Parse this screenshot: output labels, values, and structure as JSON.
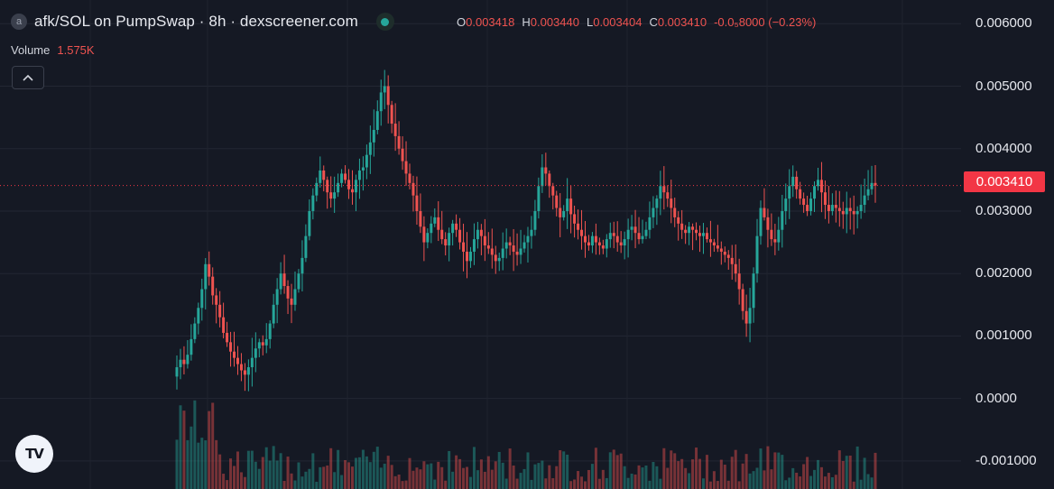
{
  "header": {
    "symbol_icon": "a",
    "title": "afk/SOL on PumpSwap · 8h · dexscreener.com",
    "ohlc": {
      "o_label": "O",
      "o": "0.003418",
      "h_label": "H",
      "h": "0.003440",
      "l_label": "L",
      "l": "0.003404",
      "c_label": "C",
      "c": "0.003410",
      "change": "-0.0₅8000 (−0.23%)"
    }
  },
  "volume": {
    "label": "Volume",
    "value": "1.575K"
  },
  "colors": {
    "up": "#26a69a",
    "down": "#ef5350",
    "background": "#151924",
    "price_line": "#f23645"
  },
  "icons": {
    "collapse": "chevron-up-icon",
    "logo": "tradingview-logo-icon"
  },
  "logo_text": "TV",
  "chart_data": {
    "type": "candlestick",
    "title": "afk/SOL on PumpSwap · 8h · dexscreener.com",
    "y_tick_labels": [
      "0.006000",
      "0.005000",
      "0.004000",
      "0.003000",
      "0.002000",
      "0.001000",
      "0.0000",
      "-0.001000"
    ],
    "y_ticks": [
      0.006,
      0.005,
      0.004,
      0.003,
      0.002,
      0.001,
      0.0,
      -0.001
    ],
    "ylim": [
      -0.00145,
      0.00638
    ],
    "last_price": 0.00341,
    "last_price_label": "0.003410",
    "grid": true,
    "close_series": [
      0.0005,
      0.00062,
      0.00055,
      0.0007,
      0.00095,
      0.0012,
      0.00145,
      0.00175,
      0.00215,
      0.00195,
      0.00165,
      0.0015,
      0.0013,
      0.00105,
      0.0009,
      0.00075,
      0.00065,
      0.00055,
      0.00045,
      0.00038,
      0.0005,
      0.00065,
      0.0008,
      0.0009,
      0.00085,
      0.00095,
      0.0012,
      0.0015,
      0.00175,
      0.002,
      0.0018,
      0.0016,
      0.0015,
      0.00175,
      0.002,
      0.00225,
      0.0026,
      0.003,
      0.00325,
      0.00345,
      0.00365,
      0.0035,
      0.0033,
      0.0032,
      0.0033,
      0.00345,
      0.0036,
      0.0035,
      0.00335,
      0.0033,
      0.0035,
      0.00365,
      0.0037,
      0.0039,
      0.0041,
      0.0043,
      0.0046,
      0.0049,
      0.005,
      0.0047,
      0.0044,
      0.0042,
      0.004,
      0.0038,
      0.0036,
      0.00345,
      0.00325,
      0.003,
      0.00275,
      0.0025,
      0.00265,
      0.0028,
      0.0029,
      0.0027,
      0.00255,
      0.00245,
      0.00265,
      0.0028,
      0.0027,
      0.0025,
      0.00235,
      0.0022,
      0.00235,
      0.00255,
      0.0027,
      0.0026,
      0.00245,
      0.0024,
      0.0023,
      0.0022,
      0.00225,
      0.0024,
      0.0025,
      0.00245,
      0.00235,
      0.0023,
      0.0024,
      0.0025,
      0.0026,
      0.0027,
      0.003,
      0.0034,
      0.0037,
      0.0036,
      0.0034,
      0.00325,
      0.00305,
      0.0029,
      0.003,
      0.0032,
      0.00295,
      0.0028,
      0.0027,
      0.0026,
      0.0025,
      0.00245,
      0.0026,
      0.0025,
      0.00245,
      0.0024,
      0.00255,
      0.00265,
      0.0026,
      0.0025,
      0.00245,
      0.00255,
      0.0027,
      0.00275,
      0.00265,
      0.00255,
      0.0026,
      0.0027,
      0.0029,
      0.00305,
      0.0032,
      0.0034,
      0.0033,
      0.0032,
      0.00305,
      0.0029,
      0.0028,
      0.0027,
      0.00265,
      0.00275,
      0.0027,
      0.00265,
      0.0026,
      0.00265,
      0.00255,
      0.0025,
      0.00245,
      0.0024,
      0.00235,
      0.0023,
      0.00225,
      0.00215,
      0.002,
      0.00175,
      0.0014,
      0.0012,
      0.00145,
      0.002,
      0.0026,
      0.00305,
      0.0029,
      0.0027,
      0.00255,
      0.0025,
      0.0027,
      0.003,
      0.0032,
      0.0034,
      0.00355,
      0.00335,
      0.0032,
      0.0031,
      0.003,
      0.0032,
      0.0034,
      0.0035,
      0.0033,
      0.0031,
      0.003,
      0.0031,
      0.00305,
      0.003,
      0.00295,
      0.00305,
      0.003,
      0.00295,
      0.003,
      0.0031,
      0.00325,
      0.00335,
      0.00345,
      0.00341
    ]
  }
}
